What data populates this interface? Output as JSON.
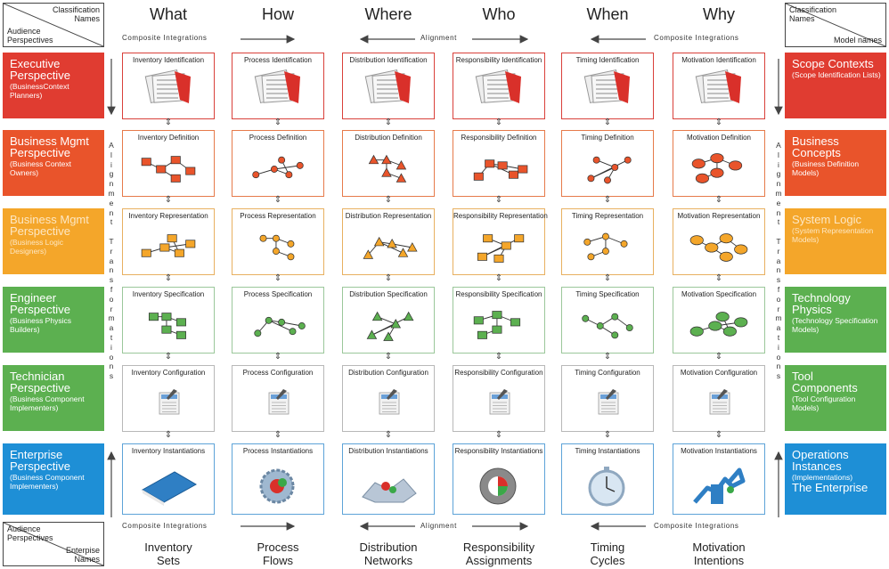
{
  "corner_tl": {
    "top": "Classification Names",
    "bottom": "Audience Perspectives"
  },
  "corner_tr": {
    "top": "Classification Names",
    "bottom": "Model names"
  },
  "corner_bl": {
    "top": "Audience Perspectives",
    "bottom": "Enterpise Names"
  },
  "columns": [
    "What",
    "How",
    "Where",
    "Who",
    "When",
    "Why"
  ],
  "integration_top": {
    "left": "Composite Integrations",
    "mid": "Alignment",
    "right": "Composite Integrations"
  },
  "integration_bottom": {
    "left": "Composite Integrations",
    "mid": "Alignment",
    "right": "Composite Integrations"
  },
  "vertical_text": [
    "A",
    "l",
    "i",
    "g",
    "n",
    "m",
    "e",
    "n",
    "t",
    "",
    "T",
    "r",
    "a",
    "n",
    "s",
    "f",
    "o",
    "r",
    "m",
    "a",
    "t",
    "i",
    "o",
    "n",
    "s"
  ],
  "rows": [
    {
      "color": "#e03c31",
      "left_main": "Executive Perspective",
      "left_sub": "(BusinessContext Planners)",
      "right_main": "Scope Contexts",
      "right_sub": "(Scope Identification Lists)",
      "cells": [
        "Inventory Identification",
        "Process Identification",
        "Distribution Identification",
        "Responsibility Identification",
        "Timing Identification",
        "Motivation Identification"
      ]
    },
    {
      "color": "#e9542b",
      "left_main": "Business Mgmt Perspective",
      "left_sub": "(Business Context Owners)",
      "right_main": "Business Concepts",
      "right_sub": "(Business Definition Models)",
      "cells": [
        "Inventory Definition",
        "Process Definition",
        "Distribution Definition",
        "Responsibility Definition",
        "Timing Definition",
        "Motivation Definition"
      ]
    },
    {
      "color": "#f4a62a",
      "left_main": "Business Mgmt Perspective",
      "left_sub": "(Business Logic Designers)",
      "right_main": "System Logic",
      "right_sub": "(System Representation Models)",
      "cells": [
        "Inventory Representation",
        "Process Representation",
        "Distribution Representation",
        "Responsibility Representation",
        "Timing Representation",
        "Motivation Representation"
      ]
    },
    {
      "color": "#5cb050",
      "left_main": "Engineer Perspective",
      "left_sub": "(Business Physics Builders)",
      "right_main": "Technology Physics",
      "right_sub": "(Technology Specification Models)",
      "cells": [
        "Inventory Specification",
        "Process Specification",
        "Distribution Specification",
        "Responsibility Specification",
        "Timing Specification",
        "Motivation Specification"
      ]
    },
    {
      "color": "#5cb050",
      "left_main": "Technician Perspective",
      "left_sub": "(Business Component Implementers)",
      "right_main": "Tool Components",
      "right_sub": "(Tool Configuration Models)",
      "cells": [
        "Inventory Configuration",
        "Process Configuration",
        "Distribution Configuration",
        "Responsibility Configuration",
        "Timing Configuration",
        "Motivation Configuration"
      ]
    },
    {
      "color": "#1e8fd6",
      "left_main": "Enterprise Perspective",
      "left_sub": "(Business Component Implementers)",
      "right_main": "Operations Instances",
      "right_sub": "(Implementations)",
      "right_main2": "The Enterprise",
      "cells": [
        "Inventory Instantiations",
        "Process Instantiations",
        "Distribution Instantiations",
        "Responsibility Instantiations",
        "Timing Instantiations",
        "Motivation Instantiations"
      ]
    }
  ],
  "footers": [
    {
      "line1": "Inventory",
      "line2": "Sets"
    },
    {
      "line1": "Process",
      "line2": "Flows"
    },
    {
      "line1": "Distribution",
      "line2": "Networks"
    },
    {
      "line1": "Responsibility",
      "line2": "Assignments"
    },
    {
      "line1": "Timing",
      "line2": "Cycles"
    },
    {
      "line1": "Motivation",
      "line2": "Intentions"
    }
  ]
}
